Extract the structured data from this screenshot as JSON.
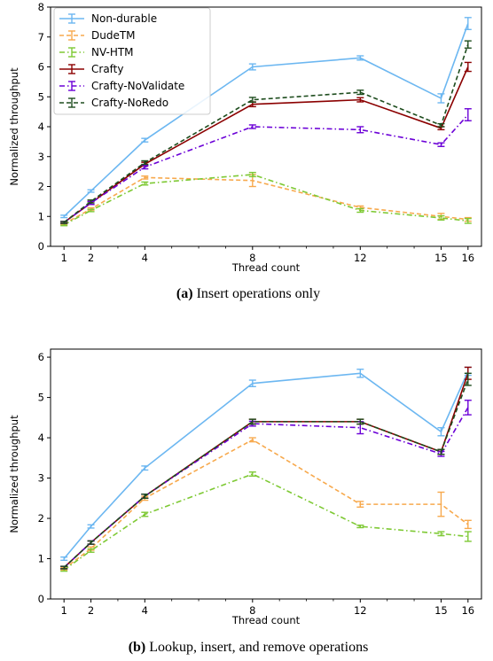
{
  "chart_data": [
    {
      "type": "line",
      "caption": {
        "label": "(a)",
        "text": " Insert operations only"
      },
      "xlabel": "Thread count",
      "ylabel": "Normalized throughput",
      "x": [
        1,
        2,
        4,
        8,
        12,
        15,
        16
      ],
      "xlim": [
        0.5,
        16.5
      ],
      "ylim": [
        0,
        8
      ],
      "yticks": [
        0,
        1,
        2,
        3,
        4,
        5,
        6,
        7,
        8
      ],
      "legend_position": "top-left",
      "series": [
        {
          "name": "Non-durable",
          "color": "#6cb7f1",
          "dash": "solid",
          "values": [
            1.0,
            1.85,
            3.55,
            6.0,
            6.3,
            4.95,
            7.45
          ],
          "err": [
            0.04,
            0.04,
            0.06,
            0.1,
            0.07,
            0.15,
            0.2
          ]
        },
        {
          "name": "DudeTM",
          "color": "#f7a94d",
          "dash": "dashed",
          "values": [
            0.75,
            1.25,
            2.3,
            2.2,
            1.3,
            1.0,
            0.9
          ],
          "err": [
            0.03,
            0.04,
            0.05,
            0.2,
            0.05,
            0.1,
            0.06
          ]
        },
        {
          "name": "NV-HTM",
          "color": "#7ec934",
          "dash": "dashdot",
          "values": [
            0.72,
            1.2,
            2.1,
            2.4,
            1.2,
            0.95,
            0.85
          ],
          "err": [
            0.03,
            0.04,
            0.05,
            0.07,
            0.06,
            0.07,
            0.08
          ]
        },
        {
          "name": "Crafty",
          "color": "#8b0000",
          "dash": "solid",
          "values": [
            0.8,
            1.45,
            2.75,
            4.75,
            4.9,
            3.95,
            6.0
          ],
          "err": [
            0.03,
            0.05,
            0.06,
            0.08,
            0.07,
            0.05,
            0.15
          ]
        },
        {
          "name": "Crafty-NoValidate",
          "color": "#6b00d7",
          "dash": "dashdot",
          "values": [
            0.8,
            1.45,
            2.65,
            4.0,
            3.9,
            3.4,
            4.4
          ],
          "err": [
            0.03,
            0.05,
            0.06,
            0.06,
            0.1,
            0.06,
            0.2
          ]
        },
        {
          "name": "Crafty-NoRedo",
          "color": "#1e4d1e",
          "dash": "dashed",
          "values": [
            0.8,
            1.5,
            2.8,
            4.9,
            5.15,
            4.05,
            6.75
          ],
          "err": [
            0.03,
            0.05,
            0.06,
            0.08,
            0.07,
            0.05,
            0.12
          ]
        }
      ]
    },
    {
      "type": "line",
      "caption": {
        "label": "(b)",
        "text": " Lookup, insert, and remove operations"
      },
      "xlabel": "Thread count",
      "ylabel": "Normalized throughput",
      "x": [
        1,
        2,
        4,
        8,
        12,
        15,
        16
      ],
      "xlim": [
        0.5,
        16.5
      ],
      "ylim": [
        0,
        6.2
      ],
      "yticks": [
        0,
        1,
        2,
        3,
        4,
        5,
        6
      ],
      "series": [
        {
          "name": "Non-durable",
          "color": "#6cb7f1",
          "dash": "solid",
          "values": [
            1.0,
            1.8,
            3.25,
            5.35,
            5.6,
            4.15,
            5.65
          ],
          "err": [
            0.04,
            0.04,
            0.05,
            0.08,
            0.1,
            0.1,
            0.1
          ]
        },
        {
          "name": "DudeTM",
          "color": "#f7a94d",
          "dash": "dashed",
          "values": [
            0.75,
            1.25,
            2.5,
            3.95,
            2.35,
            2.35,
            1.85
          ],
          "err": [
            0.03,
            0.04,
            0.05,
            0.05,
            0.07,
            0.3,
            0.1
          ]
        },
        {
          "name": "NV-HTM",
          "color": "#7ec934",
          "dash": "dashdot",
          "values": [
            0.72,
            1.2,
            2.1,
            3.1,
            1.8,
            1.62,
            1.55
          ],
          "err": [
            0.03,
            0.04,
            0.05,
            0.05,
            0.03,
            0.05,
            0.12
          ]
        },
        {
          "name": "Crafty",
          "color": "#8b0000",
          "dash": "solid",
          "values": [
            0.78,
            1.4,
            2.55,
            4.4,
            4.4,
            3.65,
            5.6
          ],
          "err": [
            0.03,
            0.04,
            0.05,
            0.06,
            0.06,
            0.06,
            0.15
          ]
        },
        {
          "name": "Crafty-NoValidate",
          "color": "#6b00d7",
          "dash": "dashdot",
          "values": [
            0.78,
            1.4,
            2.55,
            4.35,
            4.25,
            3.6,
            4.75
          ],
          "err": [
            0.03,
            0.04,
            0.05,
            0.06,
            0.15,
            0.06,
            0.18
          ]
        },
        {
          "name": "Crafty-NoRedo",
          "color": "#1e4d1e",
          "dash": "dashed",
          "values": [
            0.78,
            1.4,
            2.55,
            4.4,
            4.4,
            3.65,
            5.45
          ],
          "err": [
            0.03,
            0.04,
            0.05,
            0.06,
            0.06,
            0.06,
            0.15
          ]
        }
      ]
    }
  ]
}
